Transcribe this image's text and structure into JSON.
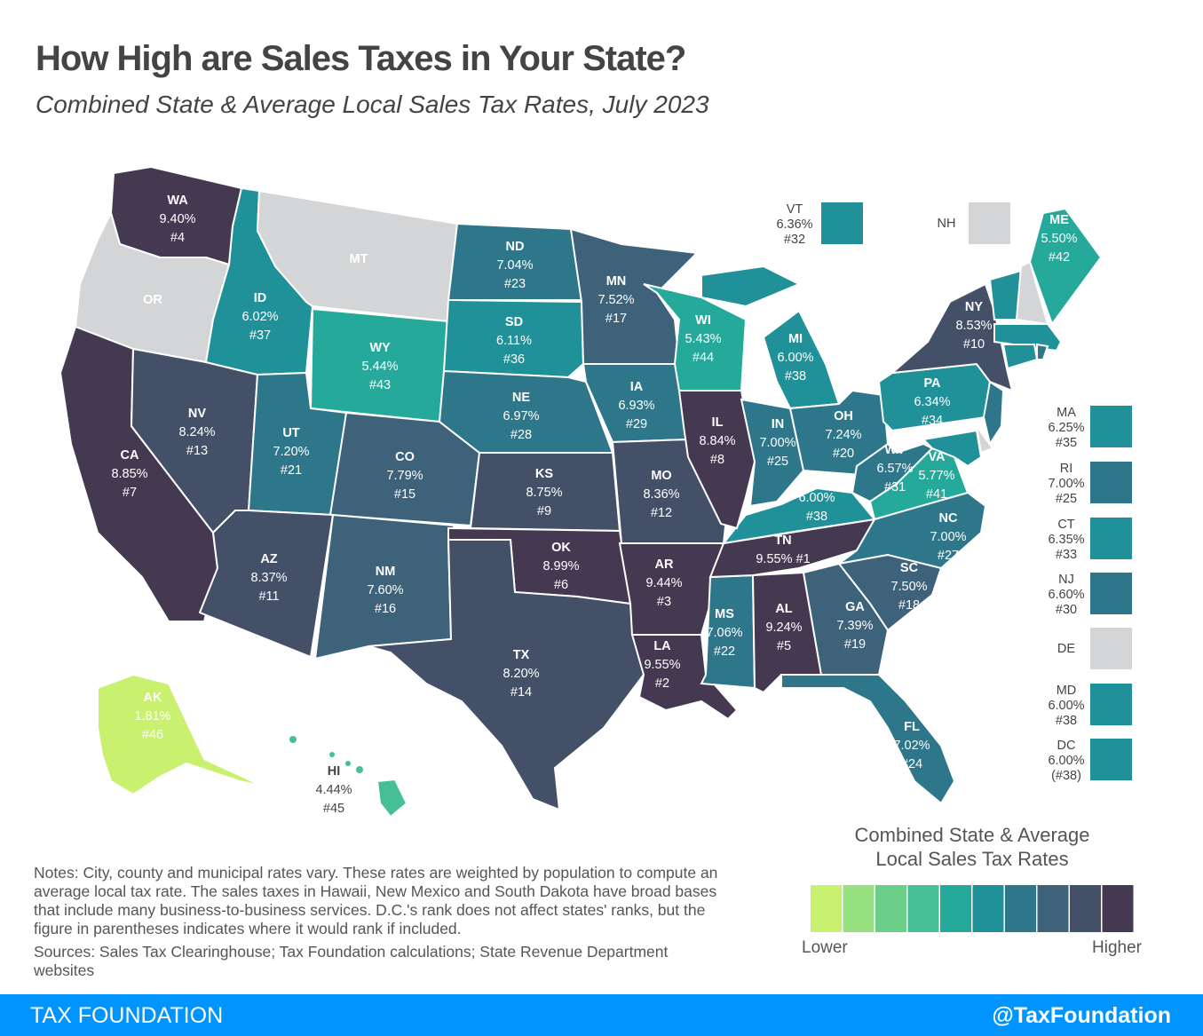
{
  "title": "How High are Sales Taxes in Your State?",
  "subtitle": "Combined State & Average Local Sales Tax Rates, July 2023",
  "colors": {
    "scale": [
      "#c9f06f",
      "#97e180",
      "#6bcf8a",
      "#47bf96",
      "#25a99a",
      "#209199",
      "#2e778b",
      "#3d627a",
      "#444f68",
      "#453952"
    ],
    "no_tax": "#d4d5d6"
  },
  "states": {
    "WA": {
      "rate": "9.40%",
      "rank": "#4",
      "level": 10
    },
    "OR": {
      "rate": "",
      "rank": "",
      "level": 0
    },
    "CA": {
      "rate": "8.85%",
      "rank": "#7",
      "level": 10
    },
    "NV": {
      "rate": "8.24%",
      "rank": "#13",
      "level": 9
    },
    "ID": {
      "rate": "6.02%",
      "rank": "#37",
      "level": 6
    },
    "MT": {
      "rate": "",
      "rank": "",
      "level": 0
    },
    "WY": {
      "rate": "5.44%",
      "rank": "#43",
      "level": 5
    },
    "UT": {
      "rate": "7.20%",
      "rank": "#21",
      "level": 7
    },
    "AZ": {
      "rate": "8.37%",
      "rank": "#11",
      "level": 9
    },
    "CO": {
      "rate": "7.79%",
      "rank": "#15",
      "level": 8
    },
    "NM": {
      "rate": "7.60%",
      "rank": "#16",
      "level": 8
    },
    "ND": {
      "rate": "7.04%",
      "rank": "#23",
      "level": 7
    },
    "SD": {
      "rate": "6.11%",
      "rank": "#36",
      "level": 6
    },
    "NE": {
      "rate": "6.97%",
      "rank": "#28",
      "level": 7
    },
    "KS": {
      "rate": "8.75%",
      "rank": "#9",
      "level": 9
    },
    "OK": {
      "rate": "8.99%",
      "rank": "#6",
      "level": 10
    },
    "TX": {
      "rate": "8.20%",
      "rank": "#14",
      "level": 9
    },
    "MN": {
      "rate": "7.52%",
      "rank": "#17",
      "level": 8
    },
    "IA": {
      "rate": "6.93%",
      "rank": "#29",
      "level": 7
    },
    "MO": {
      "rate": "8.36%",
      "rank": "#12",
      "level": 9
    },
    "AR": {
      "rate": "9.44%",
      "rank": "#3",
      "level": 10
    },
    "LA": {
      "rate": "9.55%",
      "rank": "#2",
      "level": 10
    },
    "WI": {
      "rate": "5.43%",
      "rank": "#44",
      "level": 5
    },
    "IL": {
      "rate": "8.84%",
      "rank": "#8",
      "level": 10
    },
    "MI": {
      "rate": "6.00%",
      "rank": "#38",
      "level": 6
    },
    "IN": {
      "rate": "7.00%",
      "rank": "#25",
      "level": 7
    },
    "OH": {
      "rate": "7.24%",
      "rank": "#20",
      "level": 7
    },
    "KY": {
      "rate": "6.00%",
      "rank": "#38",
      "level": 6
    },
    "TN": {
      "rate": "9.55%",
      "rank": "#1",
      "level": 10
    },
    "MS": {
      "rate": "7.06%",
      "rank": "#22",
      "level": 7
    },
    "AL": {
      "rate": "9.24%",
      "rank": "#5",
      "level": 10
    },
    "GA": {
      "rate": "7.39%",
      "rank": "#19",
      "level": 8
    },
    "FL": {
      "rate": "7.02%",
      "rank": "#24",
      "level": 7
    },
    "SC": {
      "rate": "7.50%",
      "rank": "#18",
      "level": 8
    },
    "NC": {
      "rate": "7.00%",
      "rank": "#27",
      "level": 7
    },
    "VA": {
      "rate": "5.77%",
      "rank": "#41",
      "level": 5
    },
    "WV": {
      "rate": "6.57%",
      "rank": "#31",
      "level": 7
    },
    "PA": {
      "rate": "6.34%",
      "rank": "#34",
      "level": 6
    },
    "NY": {
      "rate": "8.53%",
      "rank": "#10",
      "level": 9
    },
    "VT": {
      "rate": "6.36%",
      "rank": "#32",
      "level": 6
    },
    "NH": {
      "rate": "",
      "rank": "",
      "level": 0
    },
    "ME": {
      "rate": "5.50%",
      "rank": "#42",
      "level": 5
    },
    "MA": {
      "rate": "6.25%",
      "rank": "#35",
      "level": 6
    },
    "RI": {
      "rate": "7.00%",
      "rank": "#25",
      "level": 7
    },
    "CT": {
      "rate": "6.35%",
      "rank": "#33",
      "level": 6
    },
    "NJ": {
      "rate": "6.60%",
      "rank": "#30",
      "level": 7
    },
    "DE": {
      "rate": "",
      "rank": "",
      "level": 0
    },
    "MD": {
      "rate": "6.00%",
      "rank": "#38",
      "level": 6
    },
    "DC": {
      "rate": "6.00%",
      "rank": "(#38)",
      "level": 6
    },
    "AK": {
      "rate": "1.81%",
      "rank": "#46",
      "level": 1
    },
    "HI": {
      "rate": "4.44%",
      "rank": "#45",
      "level": 4
    }
  },
  "notes": "Notes: City, county and municipal rates vary. These rates are weighted by population to compute an average local tax rate. The sales taxes in Hawaii, New Mexico and South Dakota have broad bases that include many business-to-business services. D.C.'s rank does not affect states' ranks, but the figure in parentheses indicates where it would rank if included.",
  "sources": "Sources: Sales Tax Clearinghouse; Tax Foundation calculations; State Revenue Department websites",
  "legend": {
    "title_line1": "Combined State & Average",
    "title_line2": "Local Sales Tax Rates",
    "low": "Lower",
    "high": "Higher"
  },
  "footer": {
    "brand": "TAX FOUNDATION",
    "handle": "@TaxFoundation"
  }
}
